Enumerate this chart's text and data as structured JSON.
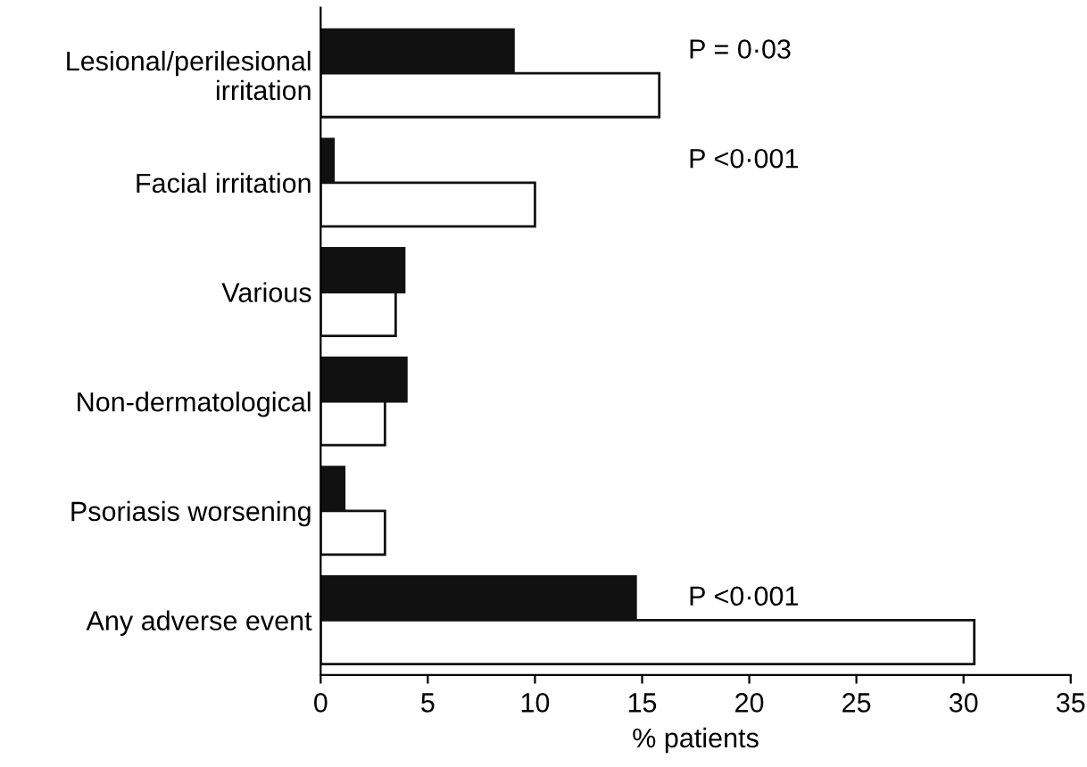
{
  "chart_data": {
    "type": "bar",
    "orientation": "horizontal",
    "xlabel": "% patients",
    "categories": [
      "Lesional/perilesional\nirritation",
      "Facial irritation",
      "Various",
      "Non-dermatological",
      "Psoriasis worsening",
      "Any adverse event"
    ],
    "series": [
      {
        "color": "#111111",
        "values": [
          9.0,
          0.6,
          3.9,
          4.0,
          1.1,
          14.7
        ]
      },
      {
        "color": "#ffffff",
        "values": [
          15.8,
          10.0,
          3.5,
          3.0,
          3.0,
          30.5
        ]
      }
    ],
    "xlim": [
      0,
      35
    ],
    "xticks": [
      0,
      5,
      10,
      15,
      20,
      25,
      30,
      35
    ],
    "grid": false,
    "legend": false,
    "annotations": [
      "P = 0·03",
      "P <0·001",
      "P <0·001"
    ]
  }
}
